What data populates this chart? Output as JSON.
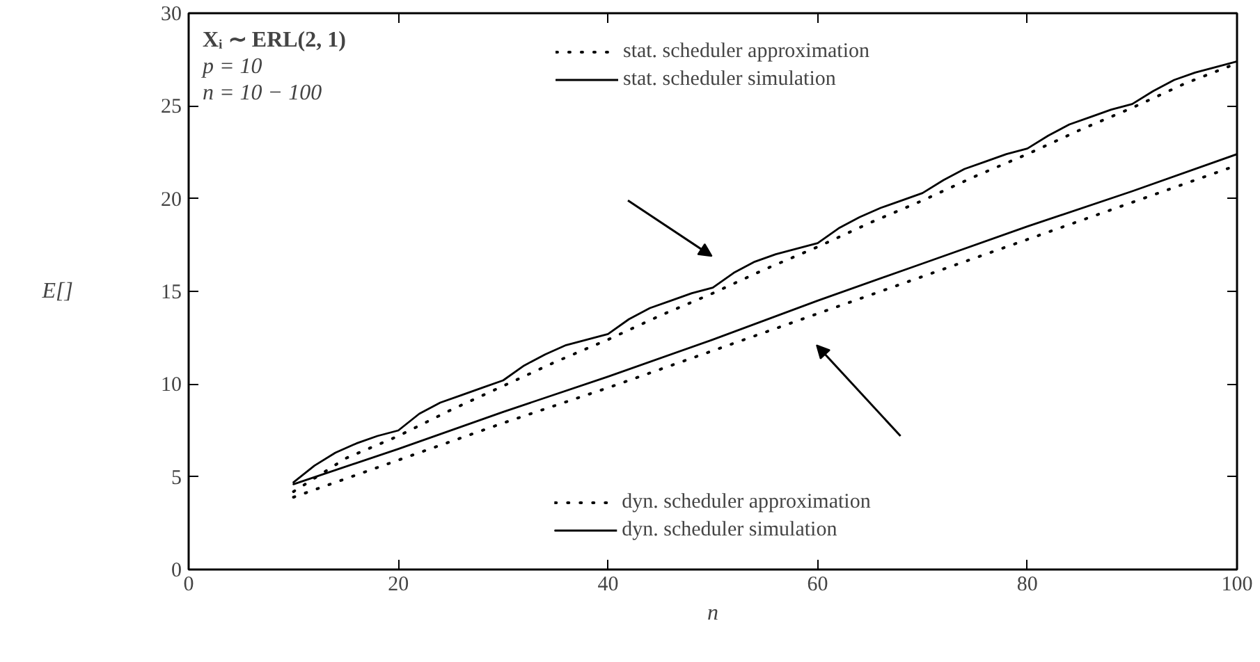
{
  "chart_data": {
    "type": "line",
    "xlabel": "n",
    "ylabel": "E[]",
    "annotations": [
      "Xᵢ ∼ ERL(2, 1)",
      "p = 10",
      "n = 10 − 100"
    ],
    "xlim": [
      0,
      100
    ],
    "xticks": [
      0,
      20,
      40,
      60,
      80,
      100
    ],
    "ylim": [
      0,
      30
    ],
    "yticks": [
      0,
      5,
      10,
      15,
      20,
      25,
      30
    ],
    "grid": false,
    "legend": "top",
    "marker": "none",
    "series": [
      {
        "name": "stat. scheduler approximation",
        "color": "#000000",
        "line_style": "dotted",
        "x": [
          10,
          15,
          20,
          25,
          30,
          35,
          40,
          45,
          50,
          55,
          60,
          65,
          70,
          75,
          80,
          85,
          90,
          95,
          100
        ],
        "values": [
          4.2,
          6.0,
          7.2,
          8.6,
          9.9,
          11.2,
          12.4,
          13.7,
          14.9,
          16.2,
          17.4,
          18.7,
          19.9,
          21.2,
          22.4,
          23.7,
          24.9,
          26.2,
          27.3
        ]
      },
      {
        "name": "stat. scheduler simulation",
        "color": "#000000",
        "line_style": "solid",
        "x": [
          10,
          12,
          14,
          16,
          18,
          20,
          22,
          24,
          26,
          28,
          30,
          32,
          34,
          36,
          38,
          40,
          42,
          44,
          46,
          48,
          50,
          52,
          54,
          56,
          58,
          60,
          62,
          64,
          66,
          68,
          70,
          72,
          74,
          76,
          78,
          80,
          82,
          84,
          86,
          88,
          90,
          92,
          94,
          96,
          98,
          100
        ],
        "values": [
          4.7,
          5.6,
          6.3,
          6.8,
          7.2,
          7.5,
          8.4,
          9.0,
          9.4,
          9.8,
          10.2,
          11.0,
          11.6,
          12.1,
          12.4,
          12.7,
          13.5,
          14.1,
          14.5,
          14.9,
          15.2,
          16.0,
          16.6,
          17.0,
          17.3,
          17.6,
          18.4,
          19.0,
          19.5,
          19.9,
          20.3,
          21.0,
          21.6,
          22.0,
          22.4,
          22.7,
          23.4,
          24.0,
          24.4,
          24.8,
          25.1,
          25.8,
          26.4,
          26.8,
          27.1,
          27.4
        ]
      },
      {
        "name": "dyn. scheduler approximation",
        "color": "#000000",
        "line_style": "dotted",
        "x": [
          10,
          20,
          30,
          40,
          50,
          60,
          70,
          80,
          90,
          100
        ],
        "values": [
          3.9,
          5.9,
          7.9,
          9.8,
          11.8,
          13.8,
          15.8,
          17.8,
          19.8,
          21.8
        ]
      },
      {
        "name": "dyn. scheduler simulation",
        "color": "#000000",
        "line_style": "solid",
        "x": [
          10,
          20,
          30,
          40,
          50,
          60,
          70,
          80,
          90,
          100
        ],
        "values": [
          4.6,
          6.5,
          8.5,
          10.4,
          12.4,
          14.5,
          16.5,
          18.5,
          20.4,
          22.4
        ]
      }
    ]
  }
}
